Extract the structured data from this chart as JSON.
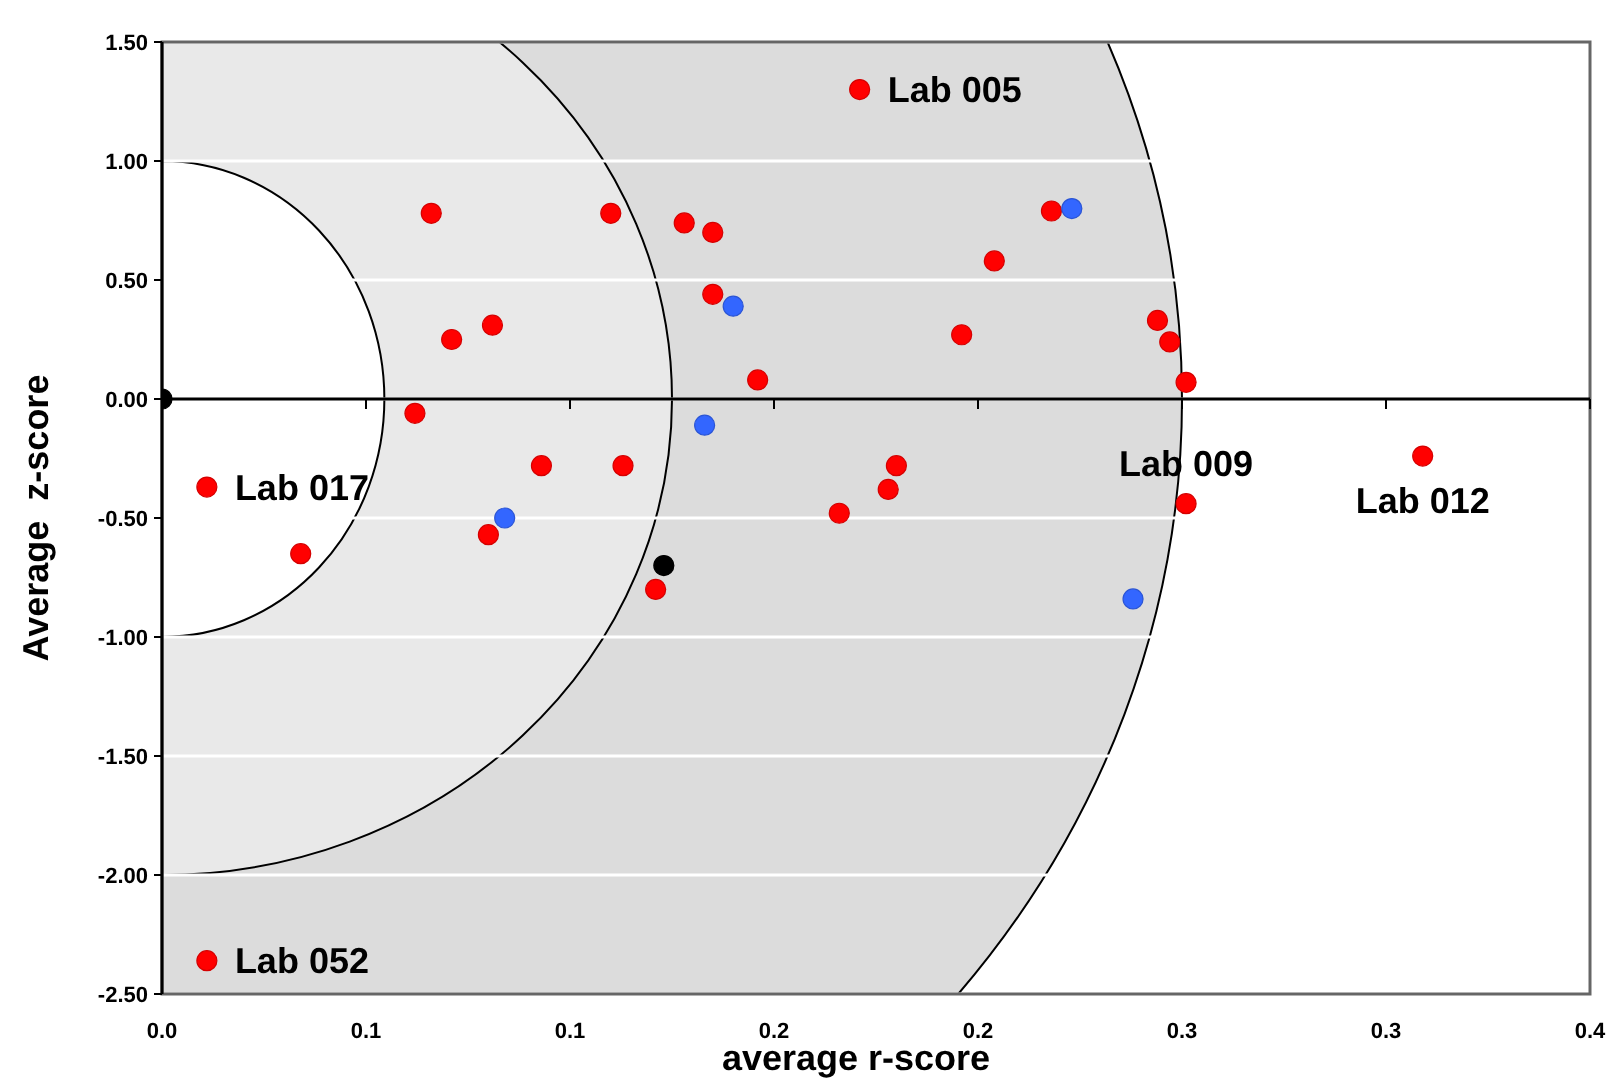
{
  "chart_data": {
    "type": "scatter",
    "xlabel": "average r-score",
    "ylabel": "Average  z-score",
    "xlim": [
      0,
      0.35
    ],
    "xticks": [
      {
        "value": 0,
        "label": "0.0"
      },
      {
        "value": 0.05,
        "label": "0.1"
      },
      {
        "value": 0.1,
        "label": "0.1"
      },
      {
        "value": 0.15,
        "label": "0.2"
      },
      {
        "value": 0.2,
        "label": "0.2"
      },
      {
        "value": 0.25,
        "label": "0.3"
      },
      {
        "value": 0.3,
        "label": "0.3"
      },
      {
        "value": 0.35,
        "label": "0.4"
      }
    ],
    "ylim": [
      -2.5,
      1.5
    ],
    "yticks": [
      {
        "value": -2.5,
        "label": "-2.50"
      },
      {
        "value": -2,
        "label": "-2.00"
      },
      {
        "value": -1.5,
        "label": "-1.50"
      },
      {
        "value": -1,
        "label": "-1.00"
      },
      {
        "value": -0.5,
        "label": "-0.50"
      },
      {
        "value": 0,
        "label": "0.00"
      },
      {
        "value": 0.5,
        "label": "0.50"
      },
      {
        "value": 1,
        "label": "1.00"
      },
      {
        "value": 1.5,
        "label": "1.50"
      }
    ],
    "grid": "y",
    "marker": "circle",
    "series": [
      {
        "color": "#ff0000",
        "x": [
          0.066,
          0.11,
          0.128,
          0.135,
          0.135,
          0.071,
          0.081,
          0.146,
          0.062,
          0.093,
          0.113,
          0.011,
          0.08,
          0.034,
          0.121,
          0.011,
          0.171,
          0.218,
          0.204,
          0.196,
          0.244,
          0.247,
          0.251,
          0.18,
          0.178,
          0.166,
          0.251,
          0.309
        ],
        "values": [
          0.78,
          0.78,
          0.74,
          0.7,
          0.44,
          0.25,
          0.31,
          0.08,
          -0.06,
          -0.28,
          -0.28,
          -0.37,
          -0.57,
          -0.65,
          -0.8,
          -2.36,
          1.3,
          0.79,
          0.58,
          0.27,
          0.33,
          0.24,
          0.07,
          -0.28,
          -0.38,
          -0.48,
          -0.44,
          -0.24
        ]
      },
      {
        "color": "#3366ff",
        "x": [
          0.14,
          0.133,
          0.084,
          0.223,
          0.238
        ],
        "values": [
          0.39,
          -0.11,
          -0.5,
          0.8,
          -0.84
        ]
      },
      {
        "color": "#000000",
        "x": [
          0,
          0.123
        ],
        "values": [
          0,
          -0.7
        ]
      }
    ],
    "annotations": [
      {
        "text": "Lab 005",
        "x": 0.171,
        "y": 1.3
      },
      {
        "text": "Lab 017",
        "x": 0.011,
        "y": -0.37
      },
      {
        "text": "Lab 009",
        "x": 0.251,
        "y": -0.44
      },
      {
        "text": "Lab 012",
        "x": 0.309,
        "y": -0.24
      },
      {
        "text": "Lab 052",
        "x": 0.011,
        "y": -2.36
      }
    ]
  }
}
